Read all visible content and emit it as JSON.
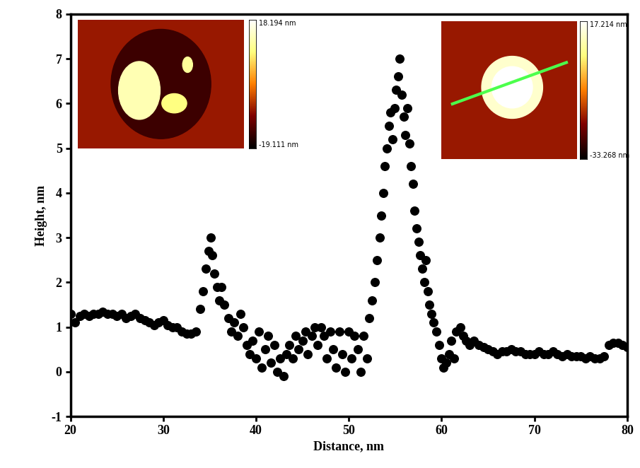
{
  "chart_data": {
    "type": "scatter",
    "x_label": "Distance, nm",
    "y_label": "Height, nm",
    "xlim": [
      20,
      80
    ],
    "xticks": [
      20,
      30,
      40,
      50,
      60,
      70,
      80
    ],
    "ylim": [
      -1,
      8
    ],
    "yticks": [
      -1,
      0,
      1,
      2,
      3,
      4,
      5,
      6,
      7,
      8
    ],
    "color": "#000000",
    "marker": "circle",
    "grid": false,
    "x": [
      20,
      20.5,
      21,
      21.5,
      22,
      22.5,
      23,
      23.5,
      24,
      24.5,
      25,
      25.5,
      26,
      26.5,
      27,
      27.5,
      28,
      28.5,
      29,
      29.5,
      30,
      30.5,
      31,
      31.5,
      32,
      32.5,
      33,
      33.5,
      34,
      34.3,
      34.6,
      34.9,
      35.1,
      35.3,
      35.5,
      35.8,
      36,
      36.3,
      36.6,
      37,
      37.3,
      37.6,
      38,
      38.3,
      38.6,
      39,
      39.3,
      39.6,
      40,
      40.3,
      40.6,
      41,
      41.3,
      41.6,
      42,
      42.3,
      42.6,
      43,
      43.3,
      43.6,
      44,
      44.3,
      44.6,
      45,
      45.3,
      45.6,
      46,
      46.3,
      46.6,
      47,
      47.3,
      47.6,
      48,
      48.3,
      48.6,
      49,
      49.3,
      49.6,
      50,
      50.3,
      50.6,
      51,
      51.3,
      51.6,
      52,
      52.2,
      52.5,
      52.8,
      53,
      53.3,
      53.5,
      53.7,
      53.9,
      54.1,
      54.3,
      54.5,
      54.7,
      54.9,
      55.1,
      55.3,
      55.5,
      55.7,
      55.9,
      56.1,
      56.3,
      56.5,
      56.7,
      56.9,
      57.1,
      57.3,
      57.5,
      57.7,
      57.9,
      58.1,
      58.3,
      58.5,
      58.7,
      58.9,
      59.1,
      59.4,
      59.7,
      60,
      60.2,
      60.5,
      60.8,
      61,
      61.3,
      61.6,
      62,
      62.3,
      62.6,
      63,
      63.5,
      64,
      64.5,
      65,
      65.5,
      66,
      66.5,
      67,
      67.5,
      68,
      68.5,
      69,
      69.5,
      70,
      70.5,
      71,
      71.5,
      72,
      72.5,
      73,
      73.5,
      74,
      74.5,
      75,
      75.5,
      76,
      76.5,
      77,
      77.5,
      78,
      78.5,
      79,
      79.5,
      80
    ],
    "values": [
      1.3,
      1.1,
      1.25,
      1.3,
      1.25,
      1.3,
      1.3,
      1.35,
      1.3,
      1.3,
      1.25,
      1.3,
      1.2,
      1.25,
      1.3,
      1.2,
      1.15,
      1.1,
      1.05,
      1.1,
      1.15,
      1.05,
      1.0,
      1.0,
      0.9,
      0.85,
      0.85,
      0.9,
      1.4,
      1.8,
      2.3,
      2.7,
      3.0,
      2.6,
      2.2,
      1.9,
      1.6,
      1.9,
      1.5,
      1.2,
      0.9,
      1.1,
      0.8,
      1.3,
      1.0,
      0.6,
      0.4,
      0.7,
      0.3,
      0.9,
      0.1,
      0.5,
      0.8,
      0.2,
      0.6,
      0.0,
      0.3,
      -0.1,
      0.4,
      0.6,
      0.3,
      0.8,
      0.5,
      0.7,
      0.9,
      0.4,
      0.8,
      1.0,
      0.6,
      1.0,
      0.8,
      0.3,
      0.9,
      0.5,
      0.1,
      0.9,
      0.4,
      0.0,
      0.9,
      0.3,
      0.8,
      0.5,
      0.0,
      0.8,
      0.3,
      1.2,
      1.6,
      2.0,
      2.5,
      3.0,
      3.5,
      4.0,
      4.6,
      5.0,
      5.5,
      5.8,
      5.2,
      5.9,
      6.3,
      6.6,
      7.0,
      6.2,
      5.7,
      5.3,
      5.9,
      5.1,
      4.6,
      4.2,
      3.6,
      3.2,
      2.9,
      2.6,
      2.3,
      2.0,
      2.5,
      1.8,
      1.5,
      1.3,
      1.1,
      0.9,
      0.6,
      0.3,
      0.1,
      0.2,
      0.4,
      0.7,
      0.3,
      0.9,
      1.0,
      0.8,
      0.7,
      0.6,
      0.7,
      0.6,
      0.55,
      0.5,
      0.45,
      0.4,
      0.45,
      0.45,
      0.5,
      0.45,
      0.45,
      0.4,
      0.4,
      0.4,
      0.45,
      0.4,
      0.4,
      0.45,
      0.4,
      0.35,
      0.4,
      0.35,
      0.35,
      0.35,
      0.3,
      0.35,
      0.3,
      0.3,
      0.35,
      0.6,
      0.65,
      0.65,
      0.6,
      0.55
    ],
    "insets": [
      {
        "colorbar_labels": [
          "18.194 nm",
          "-19.111 nm"
        ]
      },
      {
        "colorbar_labels": [
          "17.214 nm",
          "-33.268 nm"
        ]
      }
    ]
  }
}
